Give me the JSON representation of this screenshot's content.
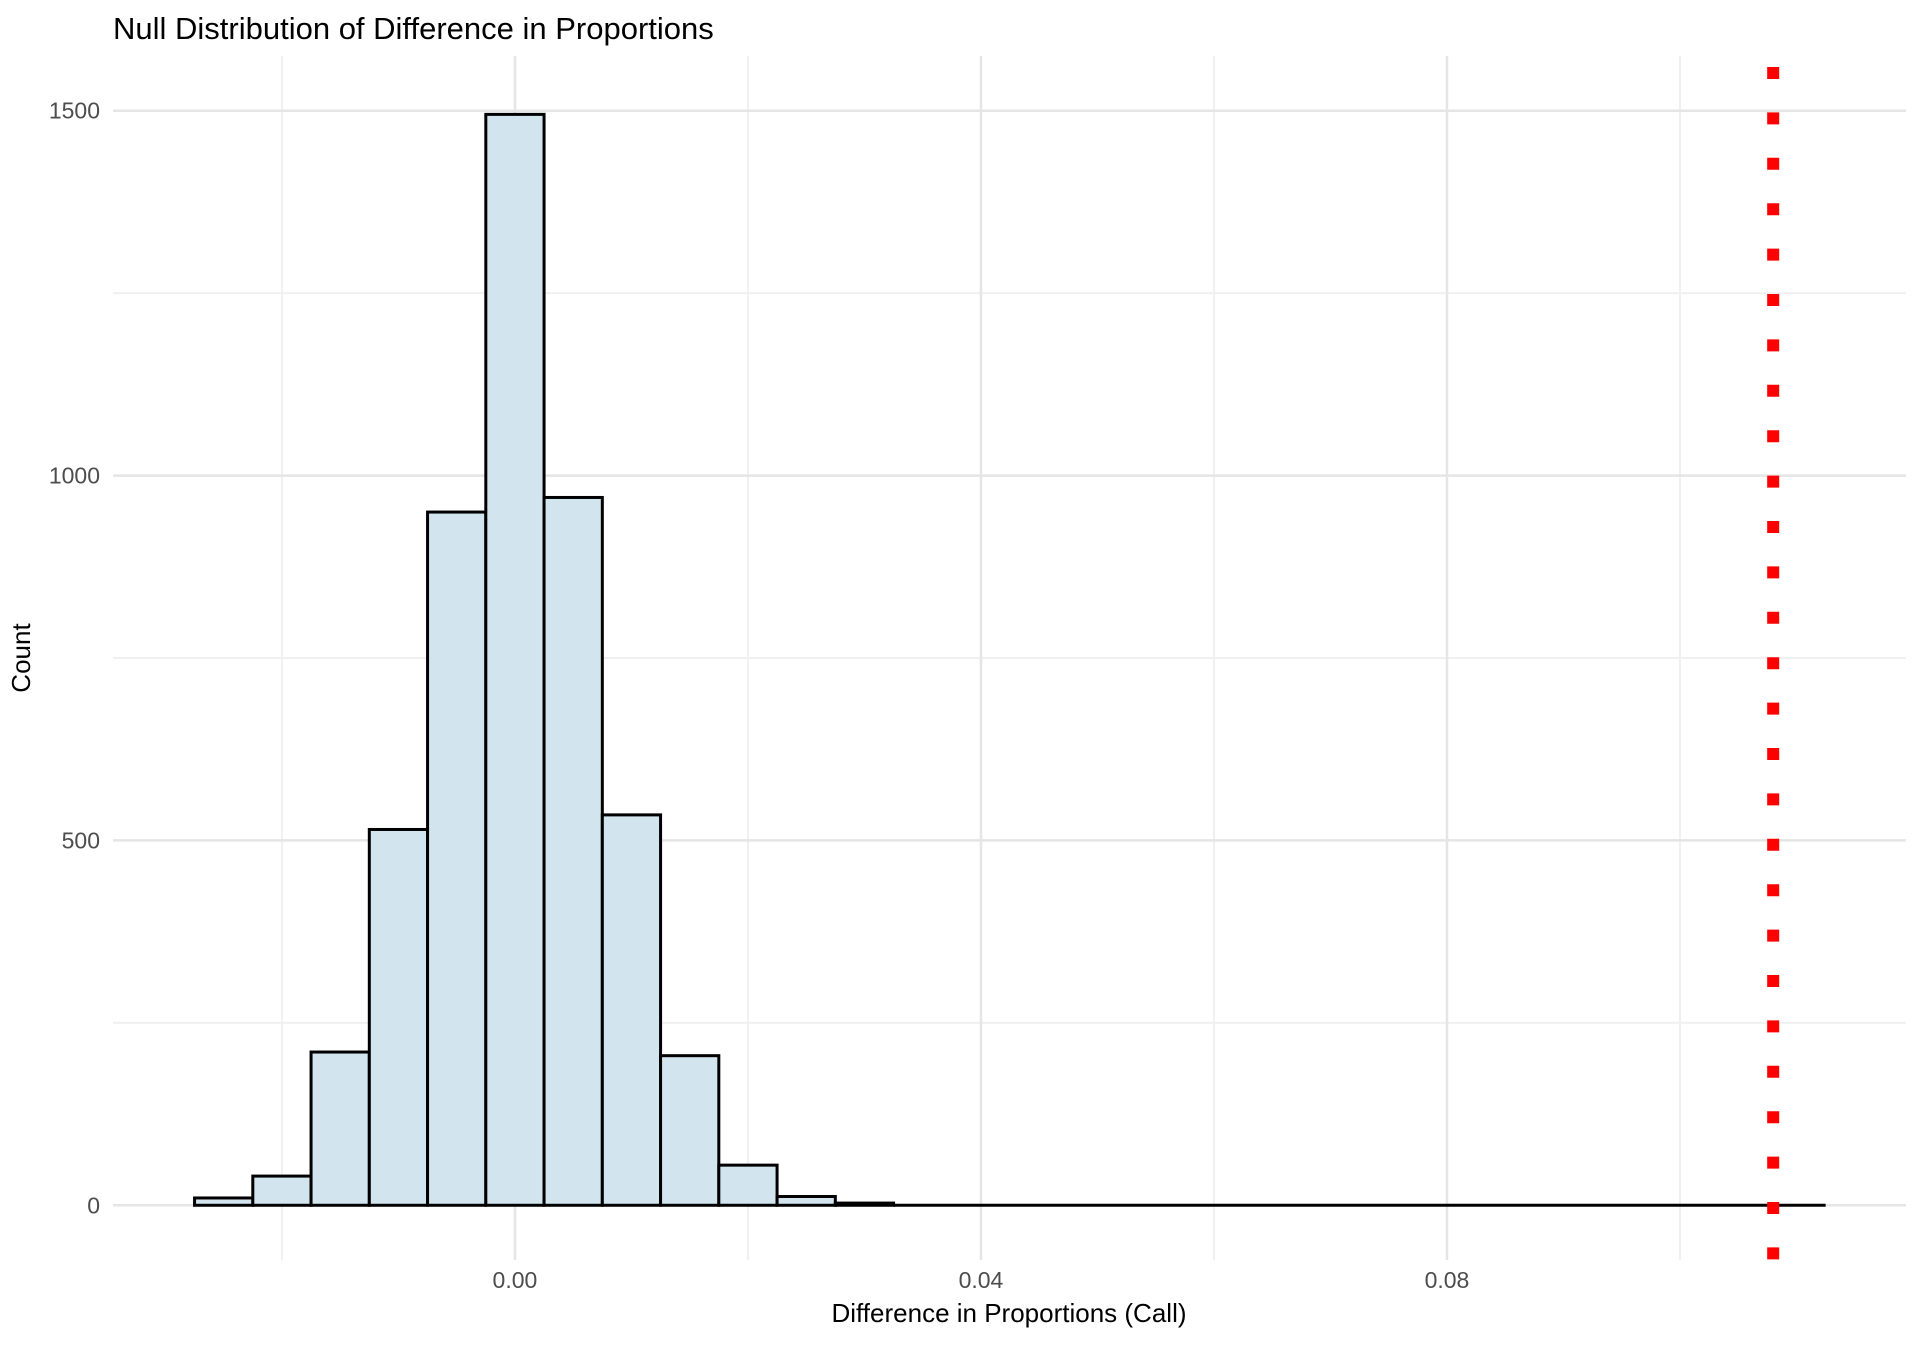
{
  "chart_data": {
    "type": "bar",
    "subtype": "histogram",
    "title": "Null Distribution of Difference in Proportions",
    "xlabel": "Difference in Proportions (Call)",
    "ylabel": "Count",
    "binwidth": 0.005,
    "bin_centers": [
      -0.025,
      -0.02,
      -0.015,
      -0.01,
      -0.005,
      0.0,
      0.005,
      0.01,
      0.015,
      0.02,
      0.025,
      0.03
    ],
    "counts": [
      10,
      40,
      210,
      515,
      950,
      1495,
      970,
      535,
      205,
      55,
      12,
      3
    ],
    "total_simulations": 5000,
    "zero_count_extent": {
      "from": 0.0325,
      "to": 0.1125
    },
    "vline": {
      "value": 0.108,
      "style": "dotted",
      "color": "#ff0000"
    },
    "x_ticks": {
      "values": [
        0,
        0.04,
        0.08
      ],
      "labels": [
        "0.00",
        "0.04",
        "0.08"
      ],
      "minor": [
        -0.02,
        0.02,
        0.06,
        0.1
      ]
    },
    "y_ticks": {
      "values": [
        0,
        500,
        1000,
        1500
      ],
      "labels": [
        "0",
        "500",
        "1000",
        "1500"
      ],
      "minor": [
        250,
        750,
        1250
      ]
    },
    "xlim": [
      -0.0345,
      0.1194
    ],
    "ylim": [
      -75,
      1575
    ],
    "grid": true,
    "legend": "none",
    "colors": {
      "bar_fill": "#d2e4ee",
      "bar_stroke": "#000000",
      "grid_major": "#e5e5e5",
      "grid_minor": "#f0f0f0",
      "tick_text": "#4d4d4d",
      "title_text": "#000000",
      "background": "#ffffff"
    }
  }
}
